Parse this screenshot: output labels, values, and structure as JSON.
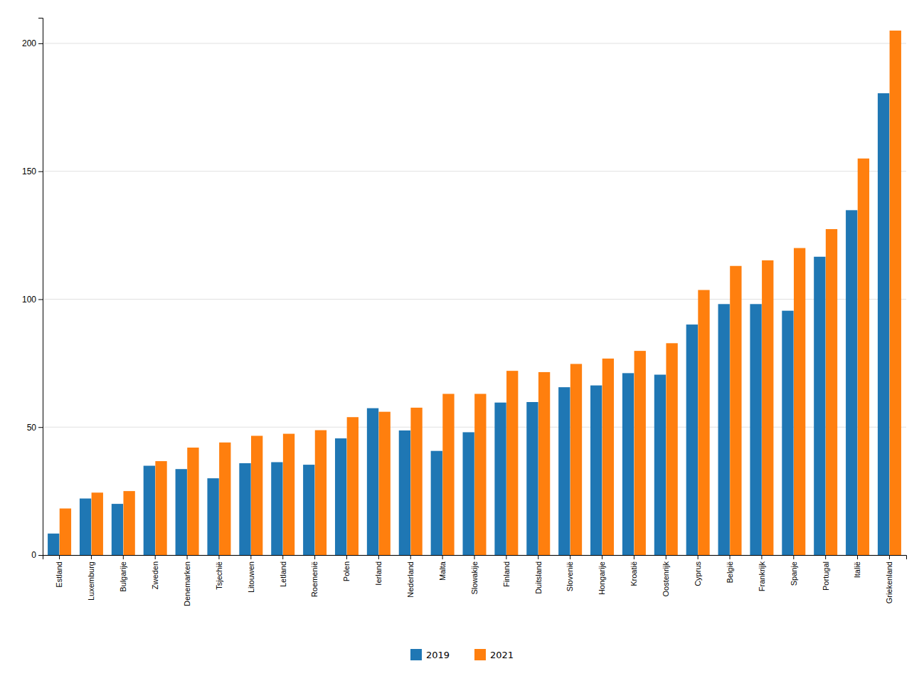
{
  "chart_data": {
    "type": "bar",
    "categories": [
      "Estland",
      "Luxemburg",
      "Bulgarije",
      "Zweden",
      "Denemarken",
      "Tsjechië",
      "Litouwen",
      "Letland",
      "Roemenië",
      "Polen",
      "Ierland",
      "Nederland",
      "Malta",
      "Slowakije",
      "Finland",
      "Duitsland",
      "Slovenië",
      "Hongarije",
      "Kroatië",
      "Oostenrijk",
      "Cyprus",
      "België",
      "Frankrijk",
      "Spanje",
      "Portugal",
      "Italië",
      "Griekenland"
    ],
    "series": [
      {
        "name": "2019",
        "values": [
          8.4,
          22.1,
          20.0,
          34.9,
          33.6,
          30.0,
          35.9,
          36.3,
          35.3,
          45.6,
          57.4,
          48.7,
          40.7,
          48.0,
          59.6,
          59.8,
          65.6,
          66.3,
          71.1,
          70.5,
          90.1,
          98.1,
          98.1,
          95.5,
          116.6,
          134.8,
          180.5
        ]
      },
      {
        "name": "2021",
        "values": [
          18.2,
          24.4,
          25.0,
          36.7,
          42.0,
          44.0,
          46.6,
          47.4,
          48.8,
          53.9,
          56.0,
          57.6,
          63.0,
          63.0,
          72.0,
          71.5,
          74.7,
          76.8,
          79.8,
          82.8,
          103.6,
          113.0,
          115.2,
          120.0,
          127.4,
          155.0,
          205.0
        ]
      }
    ],
    "ylim": [
      0,
      210
    ],
    "yticks": [
      0,
      50,
      100,
      150,
      200
    ],
    "grid": true,
    "legend": "bottom"
  }
}
